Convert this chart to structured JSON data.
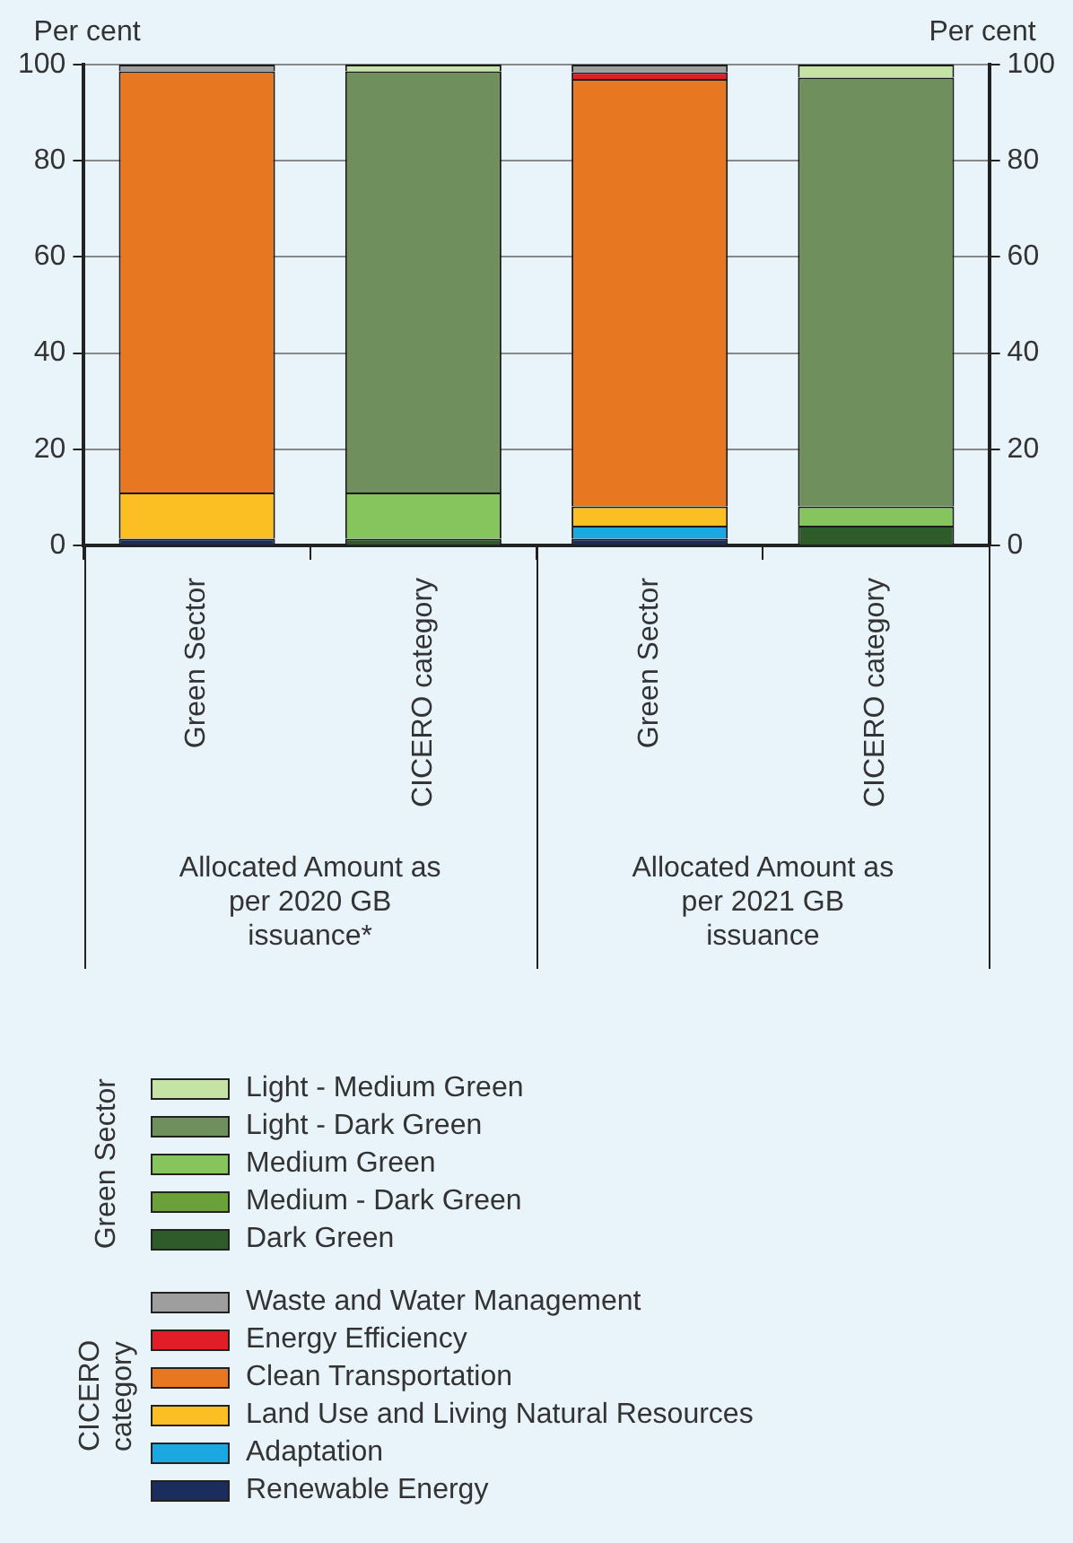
{
  "chart_data": {
    "type": "bar",
    "stacked": true,
    "ylabel": "Per cent",
    "y2label": "Per cent",
    "categories": [
      "Green Sector",
      "CICERO category",
      "Green Sector",
      "CICERO category"
    ],
    "ylim": [
      0,
      100
    ],
    "yticks": [
      0,
      20,
      40,
      60,
      80,
      100
    ],
    "y2lim": [
      0,
      100
    ],
    "y2ticks": [
      0,
      20,
      40,
      60,
      80,
      100
    ],
    "grid": "y",
    "legend": "bottom",
    "series": [
      {
        "name": "Renewable Energy",
        "color": "#1b2d5c",
        "values": [
          1.4,
          0,
          1.4,
          0
        ]
      },
      {
        "name": "Adaptation",
        "color": "#1ba8e0",
        "values": [
          0,
          0,
          2.7,
          0
        ]
      },
      {
        "name": "Land Use and Living Natural Resources",
        "color": "#fbbf24",
        "values": [
          9.6,
          0,
          4.0,
          0
        ]
      },
      {
        "name": "Clean Transportation",
        "color": "#e87722",
        "values": [
          87.6,
          0,
          88.9,
          0
        ]
      },
      {
        "name": "Energy Efficiency",
        "color": "#e11d27",
        "values": [
          0,
          0,
          1.4,
          0
        ]
      },
      {
        "name": "Waste and Water Management",
        "color": "#9e9e9e",
        "values": [
          1.4,
          0,
          1.6,
          0
        ]
      },
      {
        "name": "Dark Green",
        "color": "#2f5a2a",
        "values": [
          0,
          1.4,
          0,
          4.1
        ]
      },
      {
        "name": "Medium - Dark Green",
        "color": "#6aa13a",
        "values": [
          0,
          0,
          0,
          0
        ]
      },
      {
        "name": "Medium Green",
        "color": "#86c45e",
        "values": [
          0,
          9.6,
          0,
          4.0
        ]
      },
      {
        "name": "Light - Dark Green",
        "color": "#6f8f5c",
        "values": [
          0,
          87.6,
          0,
          89.2
        ]
      },
      {
        "name": "Light - Medium Green",
        "color": "#c4e3a4",
        "values": [
          0,
          1.4,
          0,
          2.7
        ]
      }
    ],
    "annotations": [
      "Allocated Amount as per 2020 GB issuance*",
      "Allocated Amount as per 2021 GB issuance",
      "Green Sector",
      "CICERO category"
    ]
  }
}
